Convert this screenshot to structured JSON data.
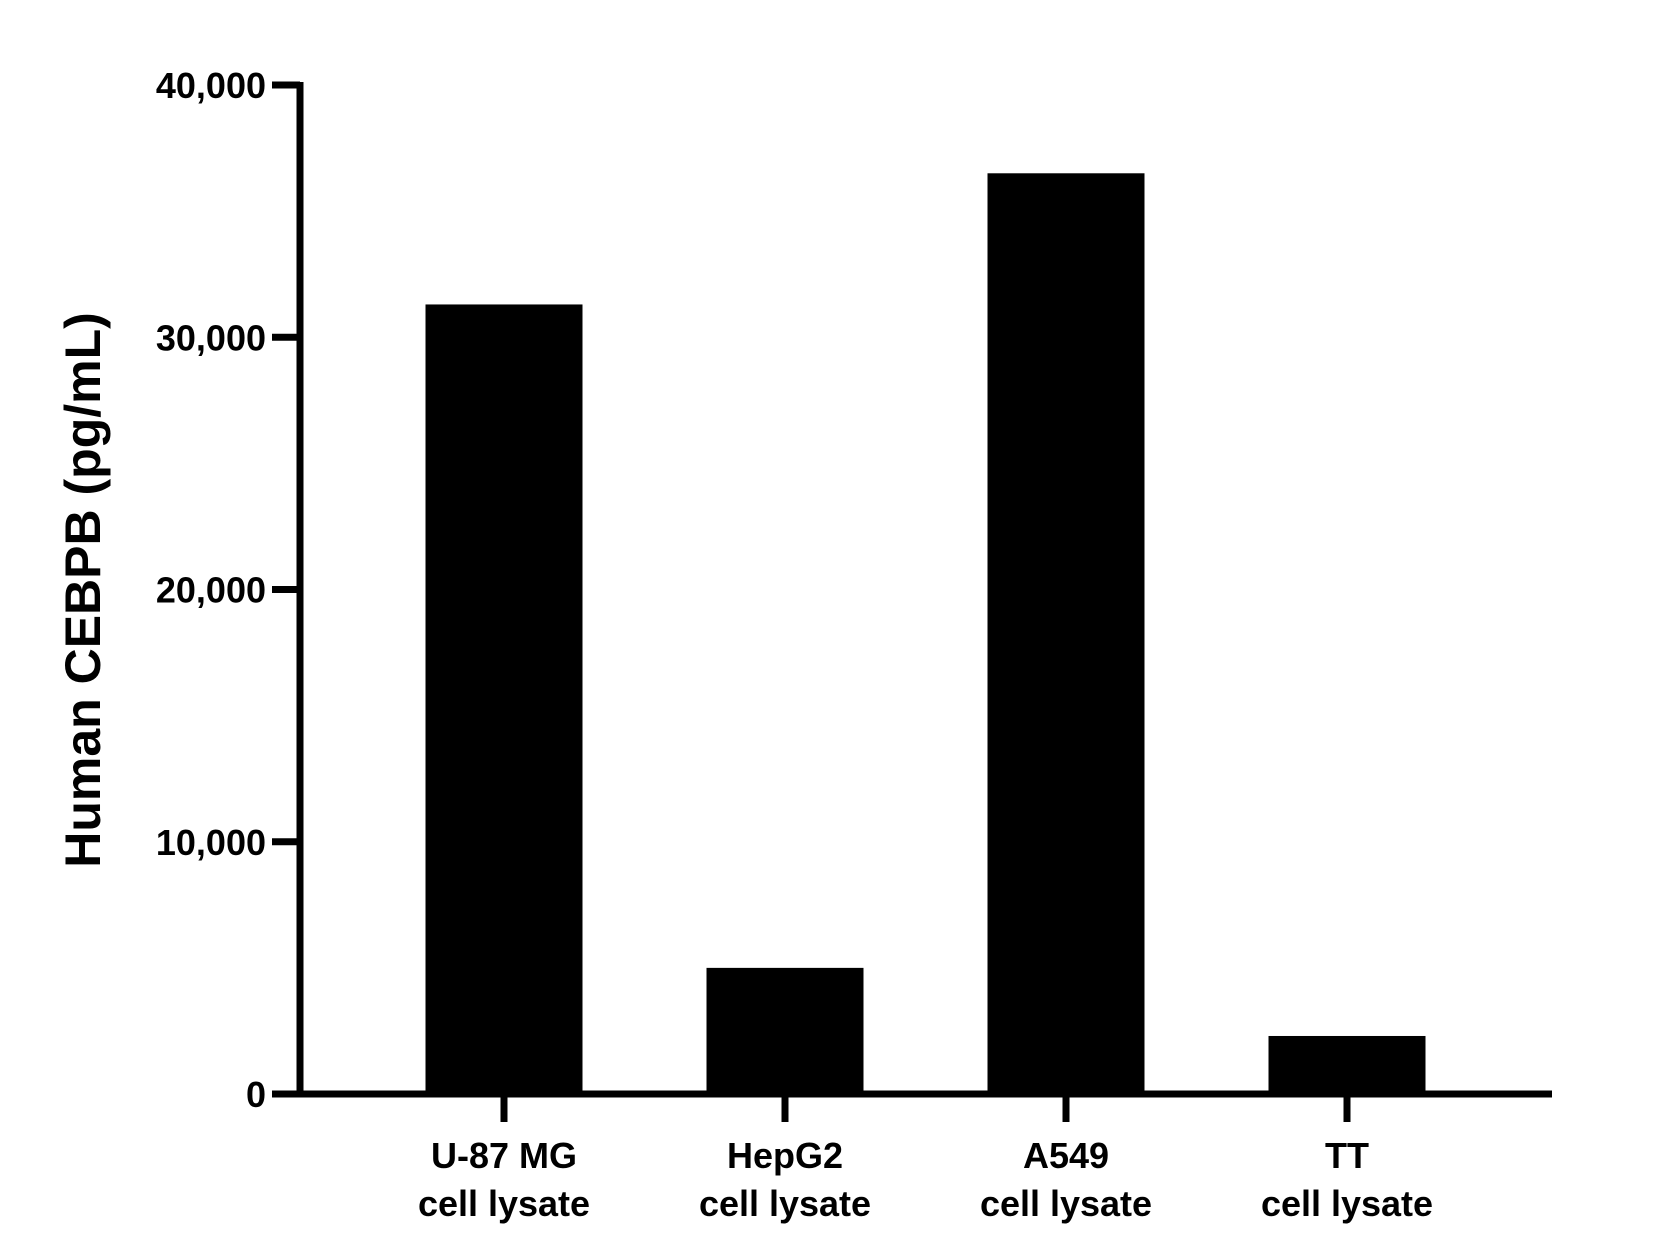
{
  "chart_data": {
    "type": "bar",
    "title": "",
    "xlabel": "",
    "ylabel": "Human CEBPB (pg/mL)",
    "ylim": [
      0,
      40000
    ],
    "y_ticks": [
      {
        "value": 0,
        "label": "0"
      },
      {
        "value": 10000,
        "label": "10,000"
      },
      {
        "value": 20000,
        "label": "20,000"
      },
      {
        "value": 30000,
        "label": "30,000"
      },
      {
        "value": 40000,
        "label": "40,000"
      }
    ],
    "categories": [
      {
        "line1": "U-87 MG",
        "line2": "cell lysate"
      },
      {
        "line1": "HepG2",
        "line2": "cell lysate"
      },
      {
        "line1": "A549",
        "line2": "cell lysate"
      },
      {
        "line1": "TT",
        "line2": "cell lysate"
      }
    ],
    "values": [
      31300,
      5000,
      36500,
      2300
    ],
    "bar_color": "#000000",
    "grid": false,
    "legend": "none"
  }
}
